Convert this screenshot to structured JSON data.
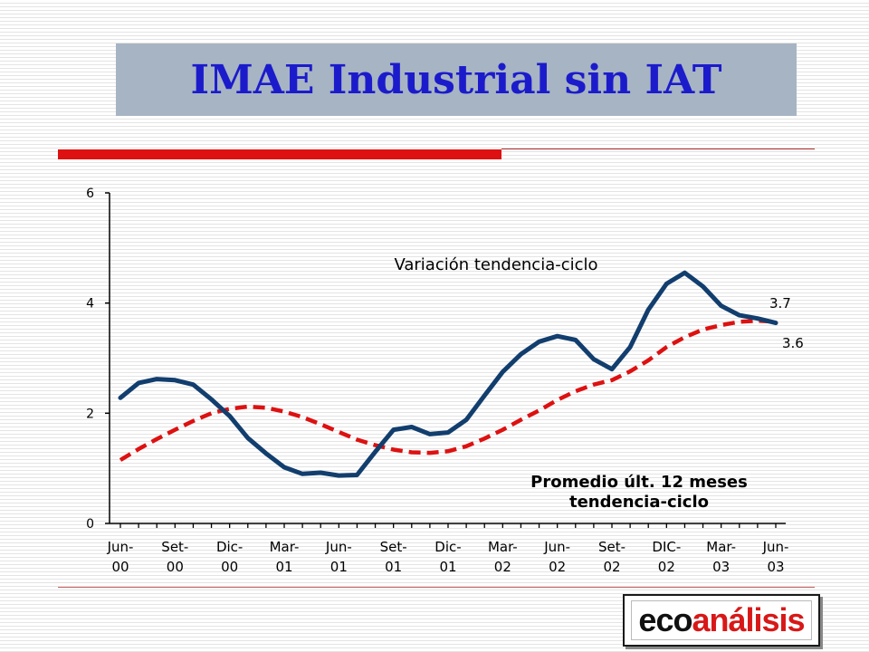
{
  "slide": {
    "title": "IMAE Industrial sin IAT"
  },
  "logo": {
    "part1": "eco",
    "part2": "análisis"
  },
  "colors": {
    "title": "#1b1bcc",
    "series_trend": "#123e6e",
    "series_avg": "#dd1111",
    "accent_rule": "#dd1111"
  },
  "chart_data": {
    "type": "line",
    "ylim": [
      0,
      6
    ],
    "yticks": [
      0,
      2,
      4,
      6
    ],
    "x_tick_labels": [
      [
        "Jun-",
        "00"
      ],
      [
        "Set-",
        "00"
      ],
      [
        "Dic-",
        "00"
      ],
      [
        "Mar-",
        "01"
      ],
      [
        "Jun-",
        "01"
      ],
      [
        "Set-",
        "01"
      ],
      [
        "Dic-",
        "01"
      ],
      [
        "Mar-",
        "02"
      ],
      [
        "Jun-",
        "02"
      ],
      [
        "Set-",
        "02"
      ],
      [
        "DIC-",
        "02"
      ],
      [
        "Mar-",
        "03"
      ],
      [
        "Jun-",
        "03"
      ]
    ],
    "x_months": [
      "Jun-00",
      "Jul-00",
      "Ago-00",
      "Set-00",
      "Oct-00",
      "Nov-00",
      "Dic-00",
      "Ene-01",
      "Feb-01",
      "Mar-01",
      "Abr-01",
      "May-01",
      "Jun-01",
      "Jul-01",
      "Ago-01",
      "Set-01",
      "Oct-01",
      "Nov-01",
      "Dic-01",
      "Ene-02",
      "Feb-02",
      "Mar-02",
      "Abr-02",
      "May-02",
      "Jun-02",
      "Jul-02",
      "Ago-02",
      "Set-02",
      "Oct-02",
      "Nov-02",
      "Dic-02",
      "Ene-03",
      "Feb-03",
      "Mar-03",
      "Abr-03",
      "May-03",
      "Jun-03"
    ],
    "series": [
      {
        "values": [
          2.28,
          2.55,
          2.62,
          2.6,
          2.52,
          2.25,
          1.95,
          1.55,
          1.27,
          1.02,
          0.9,
          0.92,
          0.87,
          0.88,
          1.3,
          1.7,
          1.75,
          1.62,
          1.65,
          1.88,
          2.32,
          2.75,
          3.07,
          3.3,
          3.4,
          3.33,
          2.98,
          2.8,
          3.2,
          3.88,
          4.35,
          4.55,
          4.3,
          3.95,
          3.78,
          3.72,
          3.64
        ],
        "style": "solid"
      },
      {
        "values": [
          1.15,
          1.35,
          1.53,
          1.7,
          1.86,
          2.0,
          2.08,
          2.12,
          2.1,
          2.03,
          1.93,
          1.8,
          1.66,
          1.52,
          1.42,
          1.34,
          1.29,
          1.28,
          1.31,
          1.4,
          1.54,
          1.7,
          1.88,
          2.05,
          2.24,
          2.4,
          2.52,
          2.6,
          2.76,
          2.96,
          3.2,
          3.38,
          3.52,
          3.6,
          3.66,
          3.68,
          3.66
        ],
        "style": "dashed"
      }
    ],
    "annotations": [
      {
        "lines": [
          "Variación tendencia-ciclo"
        ]
      },
      {
        "lines": [
          "Promedio últ. 12 meses",
          "tendencia-ciclo"
        ]
      },
      {
        "text": "3.7"
      },
      {
        "text": "3.6"
      }
    ]
  }
}
